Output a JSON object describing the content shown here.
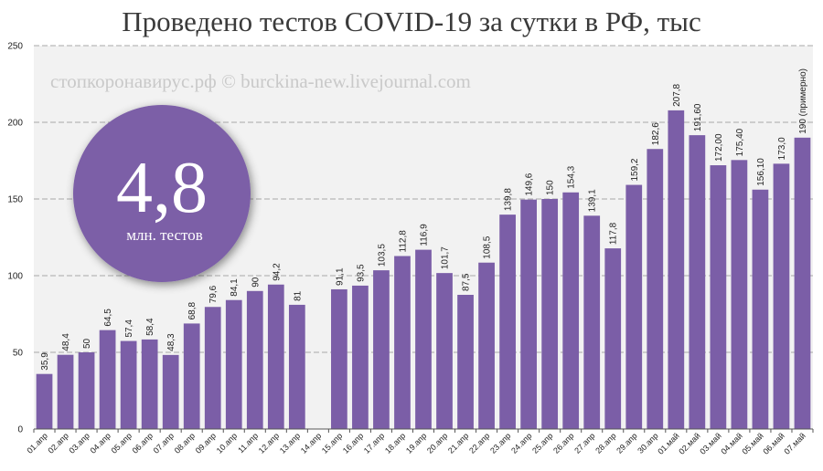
{
  "chart_data": {
    "type": "bar",
    "title": "Проведено тестов COVID-19 за сутки в РФ, тыс",
    "watermark": "стопкоронавирус.рф © burckina-new.livejournal.com",
    "badge": {
      "value": "4,8",
      "caption": "млн. тестов"
    },
    "bar_color": "#7b5ea7",
    "ylim": [
      0,
      250
    ],
    "yticks": [
      "0",
      "50",
      "100",
      "150",
      "200",
      "250"
    ],
    "grid": true,
    "categories": [
      "01.апр",
      "02.апр",
      "03.апр",
      "04.апр",
      "05.апр",
      "06.апр",
      "07.апр",
      "08.апр",
      "09.апр",
      "10.апр",
      "11.апр",
      "12.апр",
      "13.апр",
      "14.апр",
      "15.апр",
      "16.апр",
      "17.апр",
      "18.апр",
      "19.апр",
      "20.апр",
      "21.апр",
      "22.апр",
      "23.апр",
      "24.апр",
      "25.апр",
      "26.апр",
      "27.апр",
      "28.апр",
      "29.апр",
      "30.апр",
      "01.май",
      "02.май",
      "03.май",
      "04.май",
      "05.май",
      "06.май",
      "07.май"
    ],
    "values": [
      35.9,
      48.4,
      50,
      64.5,
      57.4,
      58.4,
      48.3,
      68.8,
      79.6,
      84.1,
      90,
      94.2,
      81,
      null,
      91.1,
      93.5,
      103.5,
      112.8,
      116.9,
      101.7,
      87.5,
      108.5,
      139.8,
      149.6,
      150,
      154.3,
      139.1,
      117.8,
      159.2,
      182.6,
      207.8,
      191.6,
      172,
      175.4,
      156.1,
      173,
      190
    ],
    "labels": [
      "35,9",
      "48,4",
      "50",
      "64,5",
      "57,4",
      "58,4",
      "48,3",
      "68,8",
      "79,6",
      "84,1",
      "90",
      "94,2",
      "81",
      "",
      "91,1",
      "93,5",
      "103,5",
      "112,8",
      "116,9",
      "101,7",
      "87,5",
      "108,5",
      "139,8",
      "149,6",
      "150",
      "154,3",
      "139,1",
      "117,8",
      "159,2",
      "182,6",
      "207,8",
      "191,60",
      "172,00",
      "175,40",
      "156,10",
      "173,0",
      "190 (примерно)"
    ]
  }
}
